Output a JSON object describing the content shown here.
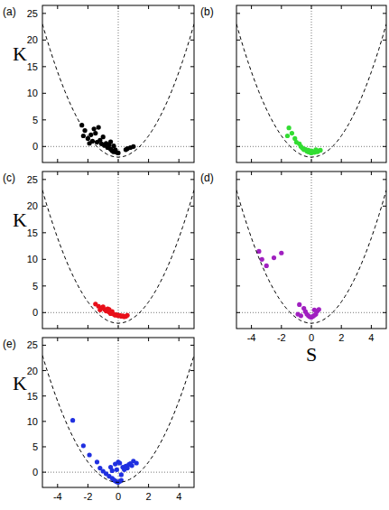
{
  "chart_data": [
    {
      "type": "scatter",
      "title": "(a)",
      "ylabel": "K",
      "xlim": [
        -5,
        5
      ],
      "ylim": [
        -3,
        26.5
      ],
      "xticks": [
        -4,
        -2,
        0,
        2,
        4
      ],
      "yticks": [
        0,
        5,
        10,
        15,
        20,
        25
      ],
      "tick_labels": "y",
      "ref_lines": {
        "x": 0,
        "y": 0
      },
      "series": [
        {
          "type": "scatter",
          "color": "#000000",
          "marker": "circle",
          "x": [
            -2.4,
            -2.2,
            -1.8,
            -1.6,
            -1.5,
            -1.3,
            -1.2,
            -2.0,
            -1.7,
            -1.4,
            -1.1,
            -1.0,
            -0.9,
            -0.8,
            -0.7,
            -0.6,
            -0.5,
            -0.4,
            -0.3,
            -0.2,
            -0.1,
            0.0,
            -0.5,
            -0.3,
            0.6,
            0.8,
            1.0,
            0.5,
            -1.9,
            -2.3
          ],
          "values": [
            4.0,
            3.0,
            2.2,
            3.3,
            2.5,
            3.6,
            1.2,
            1.5,
            1.0,
            0.8,
            0.5,
            1.8,
            0.2,
            0.6,
            -0.2,
            0.3,
            -0.5,
            -0.8,
            -1.0,
            -0.6,
            -1.1,
            -1.2,
            0.9,
            0.1,
            -0.4,
            -0.2,
            0.0,
            -0.6,
            0.6,
            2.0
          ]
        },
        {
          "type": "line",
          "color": "#000000",
          "line_style": "dashed",
          "x": [
            -5,
            -4.75,
            -4.5,
            -4.25,
            -4,
            -3.75,
            -3.5,
            -3.25,
            -3,
            -2.75,
            -2.5,
            -2.25,
            -2,
            -1.75,
            -1.5,
            -1.25,
            -1,
            -0.75,
            -0.5,
            -0.25,
            0,
            0.25,
            0.5,
            0.75,
            1,
            1.25,
            1.5,
            1.75,
            2,
            2.25,
            2.5,
            2.75,
            3,
            3.25,
            3.5,
            3.75,
            4,
            4.25,
            4.5,
            4.75,
            5
          ],
          "values": [
            23,
            20.5625,
            18.25,
            16.0625,
            14,
            12.0625,
            10.25,
            8.5625,
            7,
            5.5625,
            4.25,
            3.0625,
            2,
            1.0625,
            0.25,
            -0.4375,
            -1,
            -1.4375,
            -1.75,
            -1.9375,
            -2,
            -1.9375,
            -1.75,
            -1.4375,
            -1,
            -0.4375,
            0.25,
            1.0625,
            2,
            3.0625,
            4.25,
            5.5625,
            7,
            8.5625,
            10.25,
            12.0625,
            14,
            16.0625,
            18.25,
            20.5625,
            23
          ]
        }
      ]
    },
    {
      "type": "scatter",
      "title": "(b)",
      "xlim": [
        -5,
        5
      ],
      "ylim": [
        -3,
        26.5
      ],
      "xticks": [
        -4,
        -2,
        0,
        2,
        4
      ],
      "yticks": [
        0,
        5,
        10,
        15,
        20,
        25
      ],
      "tick_labels": false,
      "ref_lines": {
        "x": 0,
        "y": 0
      },
      "series": [
        {
          "type": "scatter",
          "color": "#33dd33",
          "marker": "circle",
          "x": [
            -1.5,
            -1.3,
            -1.6,
            -1.1,
            -1.0,
            -0.8,
            -0.7,
            -0.6,
            -0.5,
            -0.4,
            -0.3,
            -0.2,
            -0.1,
            0.0,
            0.1,
            0.2,
            0.3,
            0.4,
            0.5,
            0.6,
            -0.2,
            0.0,
            0.3
          ],
          "values": [
            3.5,
            2.5,
            2.0,
            1.5,
            0.8,
            0.5,
            0.0,
            -0.3,
            -0.6,
            -0.5,
            -0.9,
            -1.0,
            -1.1,
            -1.2,
            -1.0,
            -1.1,
            -0.9,
            -1.0,
            -0.8,
            -0.7,
            -0.7,
            -0.8,
            -0.6
          ]
        },
        {
          "type": "line",
          "color": "#000000",
          "line_style": "dashed",
          "x": [
            -5,
            -4.75,
            -4.5,
            -4.25,
            -4,
            -3.75,
            -3.5,
            -3.25,
            -3,
            -2.75,
            -2.5,
            -2.25,
            -2,
            -1.75,
            -1.5,
            -1.25,
            -1,
            -0.75,
            -0.5,
            -0.25,
            0,
            0.25,
            0.5,
            0.75,
            1,
            1.25,
            1.5,
            1.75,
            2,
            2.25,
            2.5,
            2.75,
            3,
            3.25,
            3.5,
            3.75,
            4,
            4.25,
            4.5,
            4.75,
            5
          ],
          "values": [
            23,
            20.5625,
            18.25,
            16.0625,
            14,
            12.0625,
            10.25,
            8.5625,
            7,
            5.5625,
            4.25,
            3.0625,
            2,
            1.0625,
            0.25,
            -0.4375,
            -1,
            -1.4375,
            -1.75,
            -1.9375,
            -2,
            -1.9375,
            -1.75,
            -1.4375,
            -1,
            -0.4375,
            0.25,
            1.0625,
            2,
            3.0625,
            4.25,
            5.5625,
            7,
            8.5625,
            10.25,
            12.0625,
            14,
            16.0625,
            18.25,
            20.5625,
            23
          ]
        }
      ]
    },
    {
      "type": "scatter",
      "title": "(c)",
      "ylabel": "K",
      "xlim": [
        -5,
        5
      ],
      "ylim": [
        -3,
        26.5
      ],
      "xticks": [
        -4,
        -2,
        0,
        2,
        4
      ],
      "yticks": [
        0,
        5,
        10,
        15,
        20,
        25
      ],
      "tick_labels": "y",
      "ref_lines": {
        "x": 0,
        "y": 0
      },
      "series": [
        {
          "type": "scatter",
          "color": "#e8101a",
          "marker": "circle",
          "x": [
            -1.5,
            -1.3,
            -1.1,
            -1.0,
            -0.9,
            -0.8,
            -0.7,
            -0.6,
            -0.5,
            -0.4,
            -0.3,
            -0.2,
            -0.1,
            0.0,
            0.1,
            0.2,
            0.3,
            0.4,
            0.5,
            0.6,
            -1.2,
            -0.6
          ],
          "values": [
            1.6,
            1.2,
            0.9,
            1.1,
            0.6,
            0.3,
            0.7,
            0.1,
            -0.2,
            0.2,
            -0.3,
            -0.5,
            -0.4,
            -0.6,
            -0.5,
            -0.7,
            -0.6,
            -0.8,
            -0.7,
            -0.5,
            0.5,
            0.6
          ]
        },
        {
          "type": "line",
          "color": "#000000",
          "line_style": "dashed",
          "x": [
            -5,
            -4.75,
            -4.5,
            -4.25,
            -4,
            -3.75,
            -3.5,
            -3.25,
            -3,
            -2.75,
            -2.5,
            -2.25,
            -2,
            -1.75,
            -1.5,
            -1.25,
            -1,
            -0.75,
            -0.5,
            -0.25,
            0,
            0.25,
            0.5,
            0.75,
            1,
            1.25,
            1.5,
            1.75,
            2,
            2.25,
            2.5,
            2.75,
            3,
            3.25,
            3.5,
            3.75,
            4,
            4.25,
            4.5,
            4.75,
            5
          ],
          "values": [
            23,
            20.5625,
            18.25,
            16.0625,
            14,
            12.0625,
            10.25,
            8.5625,
            7,
            5.5625,
            4.25,
            3.0625,
            2,
            1.0625,
            0.25,
            -0.4375,
            -1,
            -1.4375,
            -1.75,
            -1.9375,
            -2,
            -1.9375,
            -1.75,
            -1.4375,
            -1,
            -0.4375,
            0.25,
            1.0625,
            2,
            3.0625,
            4.25,
            5.5625,
            7,
            8.5625,
            10.25,
            12.0625,
            14,
            16.0625,
            18.25,
            20.5625,
            23
          ]
        }
      ]
    },
    {
      "type": "scatter",
      "title": "(d)",
      "xlabel": "S",
      "xlim": [
        -5,
        5
      ],
      "ylim": [
        -3,
        26.5
      ],
      "xticks": [
        -4,
        -2,
        0,
        2,
        4
      ],
      "yticks": [
        0,
        5,
        10,
        15,
        20,
        25
      ],
      "tick_labels": "x",
      "ref_lines": {
        "x": 0,
        "y": 0
      },
      "series": [
        {
          "type": "scatter",
          "color": "#a020c0",
          "marker": "circle",
          "x": [
            -3.5,
            -3.3,
            -3.0,
            -2.5,
            -2.0,
            -0.8,
            -0.5,
            -0.4,
            -0.3,
            -0.2,
            -0.1,
            0.0,
            0.1,
            0.2,
            0.3,
            0.4,
            0.5,
            -0.9,
            -0.7,
            0.2
          ],
          "values": [
            11.5,
            10.0,
            8.8,
            10.3,
            11.2,
            1.5,
            0.8,
            0.2,
            -0.3,
            -0.6,
            -0.8,
            -0.9,
            -0.7,
            -0.5,
            -0.3,
            0.3,
            0.6,
            -0.3,
            -0.6,
            0.5
          ]
        },
        {
          "type": "line",
          "color": "#000000",
          "line_style": "dashed",
          "x": [
            -5,
            -4.75,
            -4.5,
            -4.25,
            -4,
            -3.75,
            -3.5,
            -3.25,
            -3,
            -2.75,
            -2.5,
            -2.25,
            -2,
            -1.75,
            -1.5,
            -1.25,
            -1,
            -0.75,
            -0.5,
            -0.25,
            0,
            0.25,
            0.5,
            0.75,
            1,
            1.25,
            1.5,
            1.75,
            2,
            2.25,
            2.5,
            2.75,
            3,
            3.25,
            3.5,
            3.75,
            4,
            4.25,
            4.5,
            4.75,
            5
          ],
          "values": [
            23,
            20.5625,
            18.25,
            16.0625,
            14,
            12.0625,
            10.25,
            8.5625,
            7,
            5.5625,
            4.25,
            3.0625,
            2,
            1.0625,
            0.25,
            -0.4375,
            -1,
            -1.4375,
            -1.75,
            -1.9375,
            -2,
            -1.9375,
            -1.75,
            -1.4375,
            -1,
            -0.4375,
            0.25,
            1.0625,
            2,
            3.0625,
            4.25,
            5.5625,
            7,
            8.5625,
            10.25,
            12.0625,
            14,
            16.0625,
            18.25,
            20.5625,
            23
          ]
        }
      ]
    },
    {
      "type": "scatter",
      "title": "(e)",
      "ylabel": "K",
      "xlim": [
        -5,
        5
      ],
      "ylim": [
        -3,
        26.5
      ],
      "xticks": [
        -4,
        -2,
        0,
        2,
        4
      ],
      "yticks": [
        0,
        5,
        10,
        15,
        20,
        25
      ],
      "ref_lines": {
        "x": 0,
        "y": 0
      },
      "series": [
        {
          "type": "scatter",
          "color": "#2030e0",
          "marker": "circle",
          "x": [
            -3.0,
            -2.3,
            -1.9,
            -1.4,
            -1.2,
            -1.0,
            -0.8,
            -0.6,
            -0.5,
            -0.4,
            -0.3,
            -0.2,
            -0.1,
            0.0,
            0.1,
            0.2,
            0.0,
            0.1,
            -0.2,
            0.3,
            0.4,
            0.5,
            0.6,
            0.7,
            0.8,
            0.9,
            1.0,
            1.2,
            -0.1,
            0.2,
            -0.4
          ],
          "values": [
            10.2,
            5.2,
            3.4,
            2.0,
            0.8,
            0.2,
            -0.3,
            -0.8,
            1.0,
            -1.2,
            -1.5,
            -1.7,
            -1.9,
            -2.0,
            -1.8,
            -1.6,
            2.0,
            1.8,
            1.6,
            1.0,
            0.5,
            1.2,
            0.8,
            1.5,
            1.7,
            1.3,
            2.2,
            1.8,
            0.5,
            -0.5,
            0.3
          ]
        },
        {
          "type": "line",
          "color": "#000000",
          "line_style": "dashed",
          "x": [
            -5,
            -4.75,
            -4.5,
            -4.25,
            -4,
            -3.75,
            -3.5,
            -3.25,
            -3,
            -2.75,
            -2.5,
            -2.25,
            -2,
            -1.75,
            -1.5,
            -1.25,
            -1,
            -0.75,
            -0.5,
            -0.25,
            0,
            0.25,
            0.5,
            0.75,
            1,
            1.25,
            1.5,
            1.75,
            2,
            2.25,
            2.5,
            2.75,
            3,
            3.25,
            3.5,
            3.75,
            4,
            4.25,
            4.5,
            4.75,
            5
          ],
          "values": [
            23,
            20.5625,
            18.25,
            16.0625,
            14,
            12.0625,
            10.25,
            8.5625,
            7,
            5.5625,
            4.25,
            3.0625,
            2,
            1.0625,
            0.25,
            -0.4375,
            -1,
            -1.4375,
            -1.75,
            -1.9375,
            -2,
            -1.9375,
            -1.75,
            -1.4375,
            -1,
            -0.4375,
            0.25,
            1.0625,
            2,
            3.0625,
            4.25,
            5.5625,
            7,
            8.5625,
            10.25,
            12.0625,
            14,
            16.0625,
            18.25,
            20.5625,
            23
          ]
        }
      ]
    }
  ]
}
